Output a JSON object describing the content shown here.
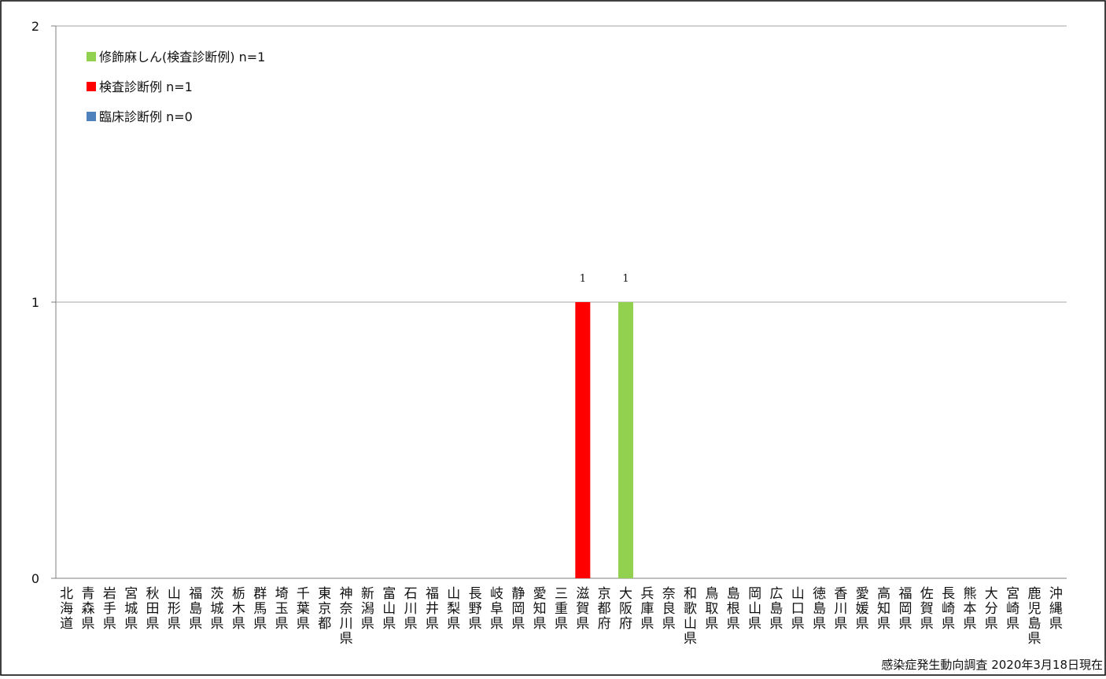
{
  "chart_data": {
    "type": "bar",
    "categories": [
      "北海道",
      "青森県",
      "岩手県",
      "宮城県",
      "秋田県",
      "山形県",
      "福島県",
      "茨城県",
      "栃木県",
      "群馬県",
      "埼玉県",
      "千葉県",
      "東京都",
      "神奈川県",
      "新潟県",
      "富山県",
      "石川県",
      "福井県",
      "山梨県",
      "長野県",
      "岐阜県",
      "静岡県",
      "愛知県",
      "三重県",
      "滋賀県",
      "京都府",
      "大阪府",
      "兵庫県",
      "奈良県",
      "和歌山県",
      "鳥取県",
      "島根県",
      "岡山県",
      "広島県",
      "山口県",
      "徳島県",
      "香川県",
      "愛媛県",
      "高知県",
      "福岡県",
      "佐賀県",
      "長崎県",
      "熊本県",
      "大分県",
      "宮崎県",
      "鹿児島県",
      "沖縄県"
    ],
    "series": [
      {
        "name": "臨床診断例 n=0",
        "color": "#4f81bd",
        "values": [
          0,
          0,
          0,
          0,
          0,
          0,
          0,
          0,
          0,
          0,
          0,
          0,
          0,
          0,
          0,
          0,
          0,
          0,
          0,
          0,
          0,
          0,
          0,
          0,
          0,
          0,
          0,
          0,
          0,
          0,
          0,
          0,
          0,
          0,
          0,
          0,
          0,
          0,
          0,
          0,
          0,
          0,
          0,
          0,
          0,
          0,
          0
        ]
      },
      {
        "name": "検査診断例 n=1",
        "color": "#ff0000",
        "values": [
          0,
          0,
          0,
          0,
          0,
          0,
          0,
          0,
          0,
          0,
          0,
          0,
          0,
          0,
          0,
          0,
          0,
          0,
          0,
          0,
          0,
          0,
          0,
          0,
          1,
          0,
          0,
          0,
          0,
          0,
          0,
          0,
          0,
          0,
          0,
          0,
          0,
          0,
          0,
          0,
          0,
          0,
          0,
          0,
          0,
          0,
          0
        ]
      },
      {
        "name": "修飾麻しん(検査診断例) n=1",
        "color": "#92d050",
        "values": [
          0,
          0,
          0,
          0,
          0,
          0,
          0,
          0,
          0,
          0,
          0,
          0,
          0,
          0,
          0,
          0,
          0,
          0,
          0,
          0,
          0,
          0,
          0,
          0,
          0,
          0,
          1,
          0,
          0,
          0,
          0,
          0,
          0,
          0,
          0,
          0,
          0,
          0,
          0,
          0,
          0,
          0,
          0,
          0,
          0,
          0,
          0
        ]
      }
    ],
    "data_labels": [
      {
        "category": "滋賀県",
        "text": "1"
      },
      {
        "category": "大阪府",
        "text": "1"
      }
    ],
    "ylim": [
      0,
      2
    ],
    "yticks": [
      "0",
      "1",
      "2"
    ],
    "grid": true,
    "legend_position": "top-left",
    "title": "",
    "xlabel": "",
    "ylabel": ""
  },
  "caption": "感染症発生動向調査 2020年3月18日現在"
}
